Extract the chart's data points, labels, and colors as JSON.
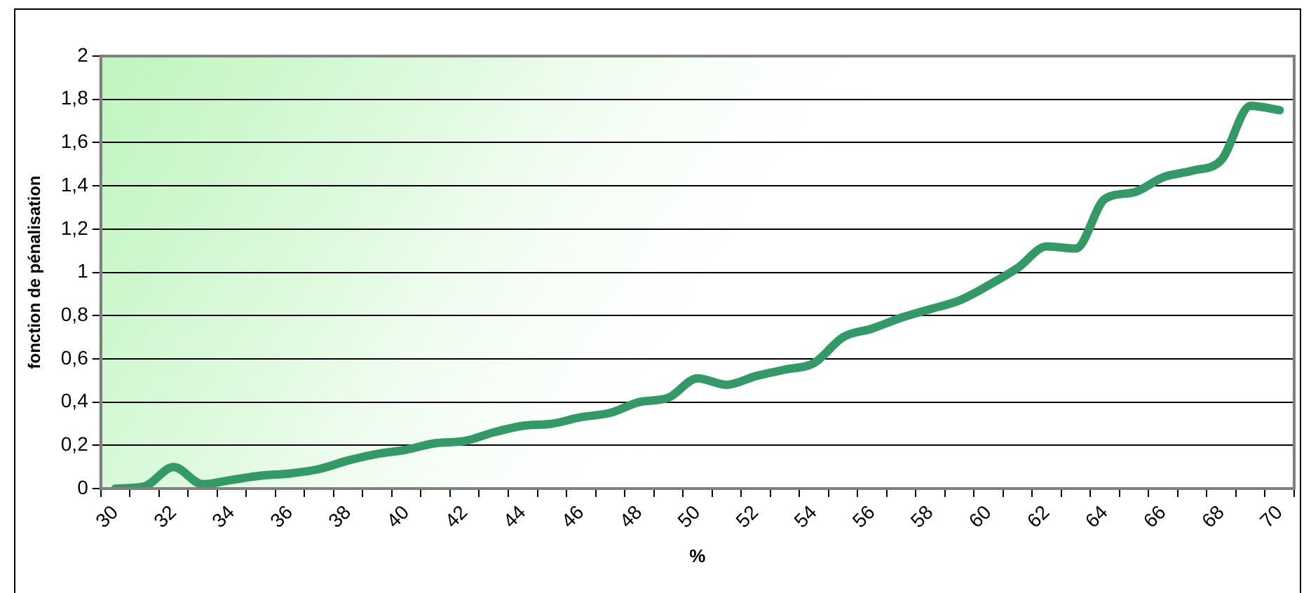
{
  "chart_data": {
    "type": "line",
    "xlabel": "%",
    "ylabel": "fonction de pénalisation",
    "categories": [
      "30",
      null,
      "32",
      null,
      "34",
      null,
      "36",
      null,
      "38",
      null,
      "40",
      null,
      "42",
      null,
      "44",
      null,
      "46",
      null,
      "48",
      null,
      "50",
      null,
      "52",
      null,
      "54",
      null,
      "56",
      null,
      "58",
      null,
      "60",
      null,
      "62",
      null,
      "64",
      null,
      "66",
      null,
      "68",
      null,
      "70"
    ],
    "series": [
      {
        "color": "#339966",
        "values": [
          0,
          0.01,
          0.1,
          0.02,
          0.04,
          0.06,
          0.07,
          0.09,
          0.13,
          0.16,
          0.18,
          0.21,
          0.22,
          0.26,
          0.29,
          0.3,
          0.33,
          0.35,
          0.4,
          0.42,
          0.51,
          0.48,
          0.52,
          0.55,
          0.58,
          0.7,
          0.74,
          0.79,
          0.83,
          0.87,
          0.94,
          1.02,
          1.12,
          1.11,
          1.34,
          1.37,
          1.44,
          1.47,
          1.52,
          1.77,
          1.75
        ]
      }
    ],
    "ylim": [
      0,
      2
    ],
    "yticks": [
      0,
      {
        "value": 0.2,
        "label": "0,2"
      },
      {
        "value": 0.4,
        "label": "0,4"
      },
      {
        "value": 0.6,
        "label": "0,6"
      },
      {
        "value": 0.8,
        "label": "0,8"
      },
      1,
      {
        "value": 1.2,
        "label": "1,2"
      },
      {
        "value": 1.4,
        "label": "1,4"
      },
      {
        "value": 1.6,
        "label": "1,6"
      },
      {
        "value": 1.8,
        "label": "1,8"
      },
      2
    ],
    "grid": "y",
    "legend": false,
    "marker": "none",
    "line_style": "solid"
  }
}
